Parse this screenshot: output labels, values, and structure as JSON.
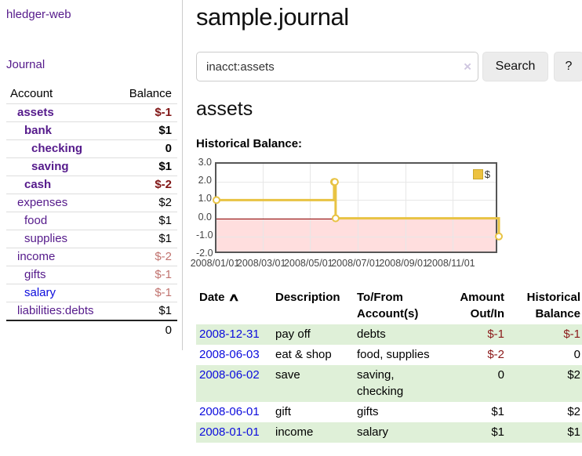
{
  "app": {
    "title": "hledger-web",
    "nav_journal_label": "Journal"
  },
  "sidebar": {
    "accounts_header": {
      "account": "Account",
      "balance": "Balance"
    },
    "accounts": [
      {
        "name": "assets",
        "indent": 1,
        "bold": true,
        "balance": "$-1",
        "neg": "strong",
        "link": "purple"
      },
      {
        "name": "bank",
        "indent": 2,
        "bold": true,
        "balance": "$1",
        "neg": "none",
        "link": "purple"
      },
      {
        "name": "checking",
        "indent": 3,
        "bold": true,
        "balance": "0",
        "neg": "none",
        "link": "purple"
      },
      {
        "name": "saving",
        "indent": 3,
        "bold": true,
        "balance": "$1",
        "neg": "none",
        "link": "purple"
      },
      {
        "name": "cash",
        "indent": 2,
        "bold": true,
        "balance": "$-2",
        "neg": "strong",
        "link": "purple"
      },
      {
        "name": "expenses",
        "indent": 1,
        "bold": false,
        "balance": "$2",
        "neg": "none",
        "link": "purple"
      },
      {
        "name": "food",
        "indent": 2,
        "bold": false,
        "balance": "$1",
        "neg": "none",
        "link": "purple"
      },
      {
        "name": "supplies",
        "indent": 2,
        "bold": false,
        "balance": "$1",
        "neg": "none",
        "link": "purple"
      },
      {
        "name": "income",
        "indent": 1,
        "bold": false,
        "balance": "$-2",
        "neg": "soft",
        "link": "purple"
      },
      {
        "name": "gifts",
        "indent": 2,
        "bold": false,
        "balance": "$-1",
        "neg": "soft",
        "link": "purple"
      },
      {
        "name": "salary",
        "indent": 2,
        "bold": false,
        "balance": "$-1",
        "neg": "soft",
        "link": "blue"
      },
      {
        "name": "liabilities:debts",
        "indent": 1,
        "bold": false,
        "balance": "$1",
        "neg": "none",
        "link": "purple"
      }
    ],
    "total": "0"
  },
  "main": {
    "title": "sample.journal",
    "search": {
      "value": "inacct:assets",
      "clear_icon": "×",
      "button_label": "Search",
      "help_label": "?"
    },
    "account_title": "assets",
    "chart_label": "Historical Balance:"
  },
  "chart_data": {
    "type": "line",
    "step": true,
    "title": "Historical Balance",
    "legend": [
      "$"
    ],
    "legend_position": "top-right",
    "x": [
      "2008-01-01",
      "2008-06-01",
      "2008-06-02",
      "2008-06-03",
      "2008-12-31"
    ],
    "values": [
      1,
      2,
      2,
      0,
      -1
    ],
    "x_range": [
      "2008-01-01",
      "2008-12-31"
    ],
    "ylim": [
      -2,
      3
    ],
    "y_ticks": [
      3,
      2,
      1,
      0,
      -1,
      -2
    ],
    "y_tick_labels": [
      "3.0",
      "2.0",
      "1.0",
      "0.0",
      "-1.0",
      "-2.0"
    ],
    "x_tick_labels": [
      "2008/01/01",
      "2008/03/01",
      "2008/05/01",
      "2008/07/01",
      "2008/09/01",
      "2008/11/01"
    ],
    "grid": true,
    "line_color": "#e8c343",
    "marker_fill": "#ffffff",
    "negative_region_color": "rgba(255,160,160,0.35)",
    "zero_line_color": "#8b0000"
  },
  "register": {
    "headers": {
      "date": "Date",
      "description": "Description",
      "accounts": "To/From Account(s)",
      "amount": "Amount Out/In",
      "balance": "Historical Balance"
    },
    "sort_asc_icon": "∧",
    "rows": [
      {
        "date": "2008-12-31",
        "description": "pay off",
        "accounts": "debts",
        "amount": "$-1",
        "amount_neg": true,
        "balance": "$-1",
        "balance_neg": true,
        "green": true
      },
      {
        "date": "2008-06-03",
        "description": "eat & shop",
        "accounts": "food, supplies",
        "amount": "$-2",
        "amount_neg": true,
        "balance": "0",
        "balance_neg": false,
        "green": false
      },
      {
        "date": "2008-06-02",
        "description": "save",
        "accounts": "saving, checking",
        "amount": "0",
        "amount_neg": false,
        "balance": "$2",
        "balance_neg": false,
        "green": true
      },
      {
        "date": "2008-06-01",
        "description": "gift",
        "accounts": "gifts",
        "amount": "$1",
        "amount_neg": false,
        "balance": "$2",
        "balance_neg": false,
        "green": false
      },
      {
        "date": "2008-01-01",
        "description": "income",
        "accounts": "salary",
        "amount": "$1",
        "amount_neg": false,
        "balance": "$1",
        "balance_neg": false,
        "green": true
      }
    ]
  }
}
